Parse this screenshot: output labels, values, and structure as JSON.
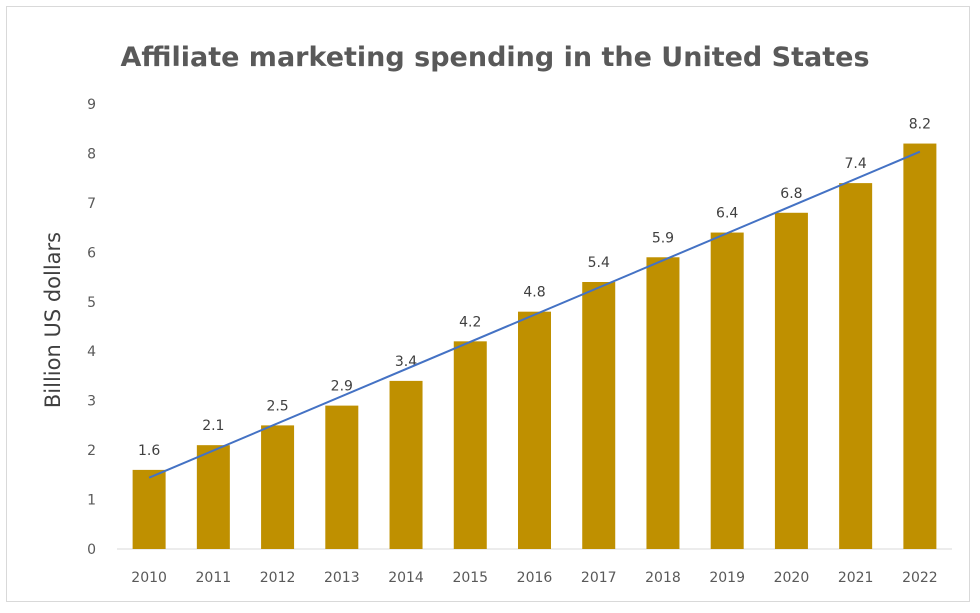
{
  "chart_data": {
    "type": "bar",
    "title": "Affiliate marketing spending in the United States",
    "xlabel": "",
    "ylabel": "Billion US dollars",
    "categories": [
      "2010",
      "2011",
      "2012",
      "2013",
      "2014",
      "2015",
      "2016",
      "2017",
      "2018",
      "2019",
      "2020",
      "2021",
      "2022"
    ],
    "values": [
      1.6,
      2.1,
      2.5,
      2.9,
      3.4,
      4.2,
      4.8,
      5.4,
      5.9,
      6.4,
      6.8,
      7.4,
      8.2
    ],
    "data_labels": [
      "1.6",
      "2.1",
      "2.5",
      "2.9",
      "3.4",
      "4.2",
      "4.8",
      "5.4",
      "5.9",
      "6.4",
      "6.8",
      "7.4",
      "8.2"
    ],
    "yticks": [
      "0",
      "1",
      "2",
      "3",
      "4",
      "5",
      "6",
      "7",
      "8",
      "9"
    ],
    "ylim": [
      0,
      9
    ],
    "grid": false,
    "legend": "none",
    "trendline": {
      "type": "linear",
      "color": "#4472C4"
    },
    "bar_color": "#BF9000"
  }
}
